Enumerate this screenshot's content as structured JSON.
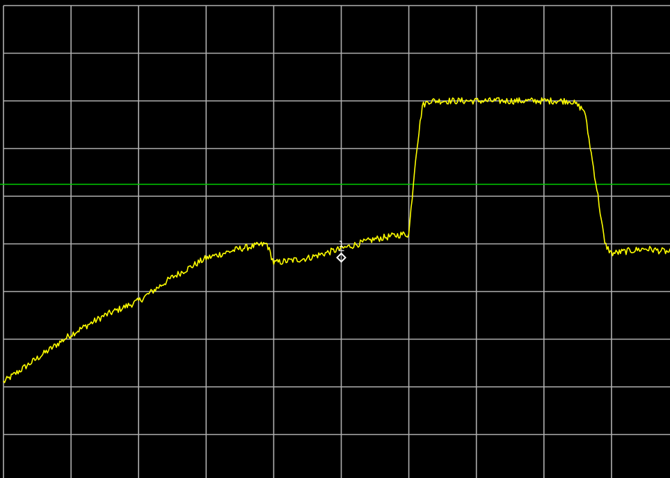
{
  "chart_data": {
    "type": "line",
    "title": "",
    "xlabel": "",
    "ylabel": "",
    "grid": true,
    "xlim": [
      0,
      10
    ],
    "ylim": [
      0,
      10
    ],
    "x_divisions": 10,
    "y_divisions": 10,
    "colors": {
      "background": "#000000",
      "grid": "#b0b0b0",
      "trace": "#ffff00",
      "threshold": "#00cc00",
      "marker": "#ffffff"
    },
    "series": [
      {
        "x": [
          0,
          0.5,
          1,
          1.5,
          2,
          2.5,
          3,
          3.5,
          3.9,
          4,
          4.5,
          5,
          5.5,
          5.9,
          6,
          6.1,
          6.2,
          6.3,
          6.4,
          7,
          7.5,
          8,
          8.4,
          8.6,
          8.8,
          8.9,
          9,
          9.5,
          10
        ],
        "values": [
          2.1,
          2.6,
          3.1,
          3.5,
          3.8,
          4.3,
          4.7,
          4.9,
          5.0,
          4.6,
          4.7,
          4.9,
          5.1,
          5.2,
          5.2,
          6.8,
          7.9,
          8.0,
          8.0,
          8.0,
          8.0,
          8.0,
          8.0,
          7.8,
          6.0,
          5.0,
          4.8,
          4.9,
          4.8
        ],
        "noise": 0.07
      }
    ],
    "threshold_line": {
      "y": 6.25
    },
    "markers": [
      {
        "label": "1",
        "x": 5.0,
        "y": 4.8
      }
    ]
  }
}
